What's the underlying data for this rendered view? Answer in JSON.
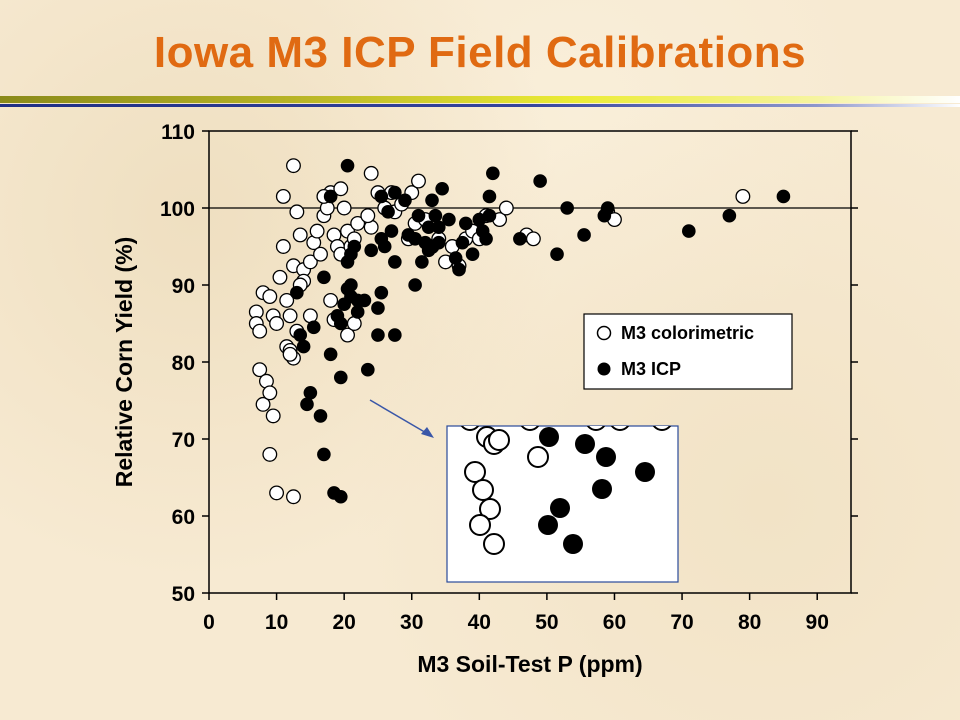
{
  "header": {
    "title": "Iowa M3 ICP Field Calibrations"
  },
  "colors": {
    "title": "#e06a12",
    "rule_top": "#b7b326",
    "rule_bottom": "#1f2f86",
    "arrow": "#3a57a8"
  },
  "chart_data": {
    "type": "scatter",
    "title": "",
    "xlabel": "M3 Soil-Test P (ppm)",
    "ylabel": "Relative Corn Yield (%)",
    "xlim": [
      0,
      95
    ],
    "ylim": [
      50,
      110
    ],
    "xticks": [
      0,
      10,
      20,
      30,
      40,
      50,
      60,
      70,
      80,
      90
    ],
    "yticks": [
      50,
      60,
      70,
      80,
      90,
      100,
      110
    ],
    "reference_line_y": 100,
    "legend": {
      "placement": "center-right"
    },
    "series": [
      {
        "name": "M3 colorimetric",
        "marker": "open-circle",
        "points": [
          [
            7,
            86.5
          ],
          [
            7,
            85
          ],
          [
            7.5,
            84
          ],
          [
            8,
            89
          ],
          [
            7.5,
            79
          ],
          [
            8.5,
            77.5
          ],
          [
            8,
            74.5
          ],
          [
            9,
            76
          ],
          [
            9.5,
            73
          ],
          [
            9,
            88.5
          ],
          [
            9.5,
            86
          ],
          [
            10,
            85
          ],
          [
            10.5,
            91
          ],
          [
            11,
            95
          ],
          [
            11.5,
            88
          ],
          [
            12,
            86
          ],
          [
            11.5,
            82
          ],
          [
            12,
            81.5
          ],
          [
            13,
            84
          ],
          [
            12.5,
            80.5
          ],
          [
            12.5,
            92.5
          ],
          [
            13.5,
            96.5
          ],
          [
            14,
            92
          ],
          [
            14,
            90.5
          ],
          [
            13.5,
            90
          ],
          [
            15,
            93
          ],
          [
            15.5,
            95.5
          ],
          [
            16,
            97
          ],
          [
            16.5,
            94
          ],
          [
            17,
            99
          ],
          [
            17.5,
            100
          ],
          [
            18,
            102
          ],
          [
            18.5,
            96.5
          ],
          [
            19,
            95
          ],
          [
            19.5,
            94
          ],
          [
            20,
            100
          ],
          [
            20.5,
            97
          ],
          [
            21,
            95
          ],
          [
            21.5,
            96
          ],
          [
            22,
            98
          ],
          [
            24,
            97.5
          ],
          [
            23.5,
            99
          ],
          [
            24,
            104.5
          ],
          [
            25,
            102
          ],
          [
            26,
            100
          ],
          [
            27,
            102
          ],
          [
            27.5,
            99.5
          ],
          [
            28.5,
            100.5
          ],
          [
            29.5,
            96
          ],
          [
            30,
            102
          ],
          [
            30.5,
            98
          ],
          [
            31,
            103.5
          ],
          [
            32,
            98.5
          ],
          [
            33,
            95
          ],
          [
            34,
            96
          ],
          [
            35,
            93
          ],
          [
            36,
            95
          ],
          [
            37,
            92.5
          ],
          [
            38,
            96
          ],
          [
            39,
            97
          ],
          [
            40,
            96
          ],
          [
            41,
            99
          ],
          [
            43,
            98.5
          ],
          [
            44,
            100
          ],
          [
            47,
            96.5
          ],
          [
            48,
            96
          ],
          [
            59,
            99.5
          ],
          [
            60,
            98.5
          ],
          [
            79,
            101.5
          ],
          [
            12.5,
            105.5
          ],
          [
            11,
            101.5
          ],
          [
            13,
            99.5
          ],
          [
            17,
            101.5
          ],
          [
            19.5,
            102.5
          ],
          [
            18,
            88
          ],
          [
            18.5,
            85.5
          ],
          [
            20.5,
            83.5
          ],
          [
            21.5,
            85
          ],
          [
            9,
            68
          ],
          [
            10,
            63
          ],
          [
            12.5,
            62.5
          ],
          [
            12,
            81
          ],
          [
            15,
            86
          ]
        ]
      },
      {
        "name": "M3 ICP",
        "marker": "filled-circle",
        "points": [
          [
            13,
            89
          ],
          [
            13.5,
            83.5
          ],
          [
            14,
            82
          ],
          [
            14.5,
            74.5
          ],
          [
            15,
            76
          ],
          [
            15.5,
            84.5
          ],
          [
            16.5,
            73
          ],
          [
            17,
            91
          ],
          [
            17,
            68
          ],
          [
            18,
            81
          ],
          [
            18.5,
            63
          ],
          [
            19.5,
            62.5
          ],
          [
            19.5,
            78
          ],
          [
            19,
            86
          ],
          [
            19.5,
            85
          ],
          [
            20,
            87.5
          ],
          [
            20.5,
            89.5
          ],
          [
            21,
            88.5
          ],
          [
            20.5,
            93
          ],
          [
            21,
            94
          ],
          [
            21.5,
            95
          ],
          [
            21,
            90
          ],
          [
            22,
            86.5
          ],
          [
            23,
            88
          ],
          [
            23.5,
            79
          ],
          [
            24,
            94.5
          ],
          [
            25,
            87
          ],
          [
            25,
            83.5
          ],
          [
            25.5,
            89
          ],
          [
            25.5,
            96
          ],
          [
            26,
            95
          ],
          [
            25.5,
            101.5
          ],
          [
            26.5,
            99.5
          ],
          [
            27,
            97
          ],
          [
            27.5,
            102
          ],
          [
            27.5,
            93
          ],
          [
            27.5,
            83.5
          ],
          [
            29.5,
            96.5
          ],
          [
            30.5,
            96
          ],
          [
            31,
            99
          ],
          [
            30.5,
            90
          ],
          [
            31.5,
            93
          ],
          [
            32,
            95.5
          ],
          [
            32.5,
            94.5
          ],
          [
            33,
            95
          ],
          [
            33.5,
            99
          ],
          [
            34,
            97.5
          ],
          [
            34,
            95.5
          ],
          [
            34.5,
            102.5
          ],
          [
            35.5,
            98.5
          ],
          [
            36.5,
            93.5
          ],
          [
            37,
            92
          ],
          [
            37.5,
            95.5
          ],
          [
            38,
            98
          ],
          [
            39,
            94
          ],
          [
            40,
            98.5
          ],
          [
            40.5,
            97
          ],
          [
            41,
            96
          ],
          [
            41.5,
            99
          ],
          [
            41.5,
            101.5
          ],
          [
            42,
            104.5
          ],
          [
            46,
            96
          ],
          [
            49,
            103.5
          ],
          [
            51.5,
            94
          ],
          [
            53,
            100
          ],
          [
            55.5,
            96.5
          ],
          [
            58.5,
            99
          ],
          [
            59,
            100
          ],
          [
            71,
            97
          ],
          [
            77,
            99
          ],
          [
            85,
            101.5
          ],
          [
            20.5,
            105.5
          ],
          [
            18,
            101.5
          ],
          [
            29,
            101
          ],
          [
            33,
            101
          ],
          [
            32.5,
            97.5
          ],
          [
            22,
            88
          ]
        ]
      }
    ],
    "legend_entries": [
      "M3 colorimetric",
      "M3 ICP"
    ]
  }
}
